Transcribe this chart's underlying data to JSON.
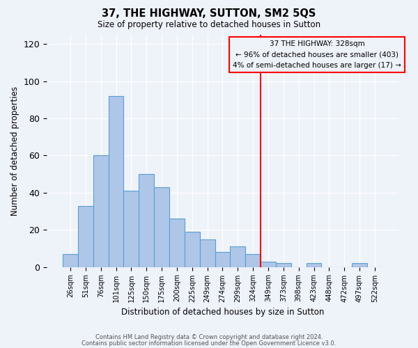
{
  "title": "37, THE HIGHWAY, SUTTON, SM2 5QS",
  "subtitle": "Size of property relative to detached houses in Sutton",
  "xlabel": "Distribution of detached houses by size in Sutton",
  "ylabel": "Number of detached properties",
  "bar_labels": [
    "26sqm",
    "51sqm",
    "76sqm",
    "101sqm",
    "125sqm",
    "150sqm",
    "175sqm",
    "200sqm",
    "225sqm",
    "249sqm",
    "274sqm",
    "299sqm",
    "324sqm",
    "349sqm",
    "373sqm",
    "398sqm",
    "423sqm",
    "448sqm",
    "472sqm",
    "497sqm",
    "522sqm"
  ],
  "bar_values": [
    7,
    33,
    60,
    92,
    41,
    50,
    43,
    26,
    19,
    15,
    8,
    11,
    7,
    3,
    2,
    0,
    2,
    0,
    0,
    2,
    0
  ],
  "bar_color": "#aec6e8",
  "bar_edgecolor": "#5a9fd4",
  "vline_color": "red",
  "annotation_title": "37 THE HIGHWAY: 328sqm",
  "annotation_line1": "← 96% of detached houses are smaller (403)",
  "annotation_line2": "4% of semi-detached houses are larger (17) →",
  "annotation_box_color": "red",
  "ylim": [
    0,
    125
  ],
  "yticks": [
    0,
    20,
    40,
    60,
    80,
    100,
    120
  ],
  "footer1": "Contains HM Land Registry data © Crown copyright and database right 2024.",
  "footer2": "Contains public sector information licensed under the Open Government Licence v3.0.",
  "bg_color": "#eef2f9"
}
